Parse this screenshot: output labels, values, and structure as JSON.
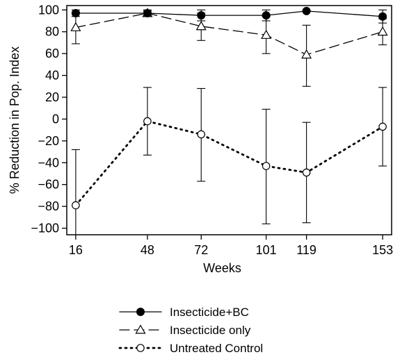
{
  "chart_data": {
    "type": "line",
    "title": "",
    "xlabel": "Weeks",
    "ylabel": "% Reduction in Pop. Index",
    "x": [
      16,
      48,
      72,
      101,
      119,
      153
    ],
    "x_tick_labels": [
      "16",
      "48",
      "72",
      "101",
      "119",
      "153"
    ],
    "xlim": [
      12,
      157
    ],
    "ylim": [
      -106,
      104
    ],
    "y_ticks": [
      -100,
      -80,
      -60,
      -40,
      -20,
      0,
      20,
      40,
      60,
      80,
      100
    ],
    "y_tick_labels": [
      "−100",
      "−80",
      "−60",
      "−40",
      "−20",
      "0",
      "20",
      "40",
      "60",
      "80",
      "100"
    ],
    "grid": false,
    "legend_position": "bottom",
    "series": [
      {
        "name": "Insecticide+BC",
        "marker": "filled-circle",
        "line_style": "solid",
        "color": "#000000",
        "values": [
          97,
          97,
          95,
          95,
          99,
          94
        ],
        "error_low": [
          94,
          94,
          90,
          90,
          99,
          88
        ],
        "error_high": [
          100,
          99,
          100,
          100,
          99,
          100
        ]
      },
      {
        "name": "Insecticide only",
        "marker": "open-triangle",
        "line_style": "dashed",
        "color": "#000000",
        "values": [
          84,
          97,
          85,
          77,
          59,
          80
        ],
        "error_low": [
          69,
          94,
          72,
          60,
          30,
          68
        ],
        "error_high": [
          98,
          100,
          97,
          94,
          86,
          92
        ]
      },
      {
        "name": "Untreated Control",
        "marker": "open-circle",
        "line_style": "dotted",
        "color": "#000000",
        "values": [
          -79,
          -2,
          -14,
          -43,
          -49,
          -7
        ],
        "error_low": [
          -106,
          -33,
          -57,
          -96,
          -95,
          -43
        ],
        "error_high": [
          -28,
          29,
          28,
          9,
          -3,
          29
        ]
      }
    ]
  }
}
